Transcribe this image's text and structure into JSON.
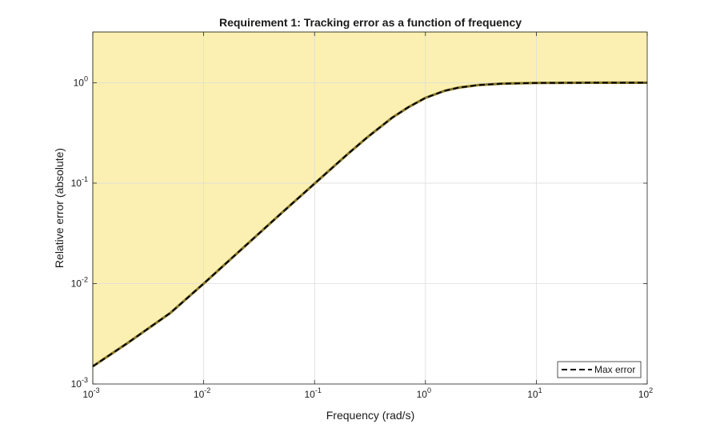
{
  "chart_data": {
    "type": "line",
    "title": "Requirement 1: Tracking error as a function of frequency",
    "xlabel": "Frequency (rad/s)",
    "ylabel": "Relative error (absolute)",
    "xscale": "log",
    "yscale": "log",
    "xlim": [
      0.001,
      100
    ],
    "ylim": [
      0.001,
      3.2
    ],
    "grid": true,
    "x_ticks": [
      {
        "base": "10",
        "exp": "-3",
        "value": 0.001
      },
      {
        "base": "10",
        "exp": "-2",
        "value": 0.01
      },
      {
        "base": "10",
        "exp": "-1",
        "value": 0.1
      },
      {
        "base": "10",
        "exp": "0",
        "value": 1
      },
      {
        "base": "10",
        "exp": "1",
        "value": 10
      },
      {
        "base": "10",
        "exp": "2",
        "value": 100
      }
    ],
    "y_ticks": [
      {
        "base": "10",
        "exp": "-3",
        "value": 0.001
      },
      {
        "base": "10",
        "exp": "-2",
        "value": 0.01
      },
      {
        "base": "10",
        "exp": "-1",
        "value": 0.1
      },
      {
        "base": "10",
        "exp": "0",
        "value": 1
      }
    ],
    "series": [
      {
        "name": "Max error",
        "style": "dashed",
        "color": "#000000",
        "x": [
          0.001,
          0.002,
          0.005,
          0.01,
          0.02,
          0.05,
          0.1,
          0.2,
          0.3,
          0.5,
          0.7,
          1,
          1.5,
          2,
          3,
          5,
          10,
          30,
          100
        ],
        "y": [
          0.0015,
          0.0025,
          0.0051,
          0.01,
          0.02,
          0.05,
          0.099,
          0.196,
          0.287,
          0.448,
          0.57,
          0.707,
          0.832,
          0.894,
          0.949,
          0.981,
          0.995,
          0.9994,
          1.0
        ]
      }
    ],
    "shaded_region": {
      "description": "violation region above curve",
      "color": "#fbf0b2",
      "edge_color": "#a09040"
    },
    "legend": {
      "position": "bottom-right",
      "entries": [
        "Max error"
      ]
    }
  }
}
